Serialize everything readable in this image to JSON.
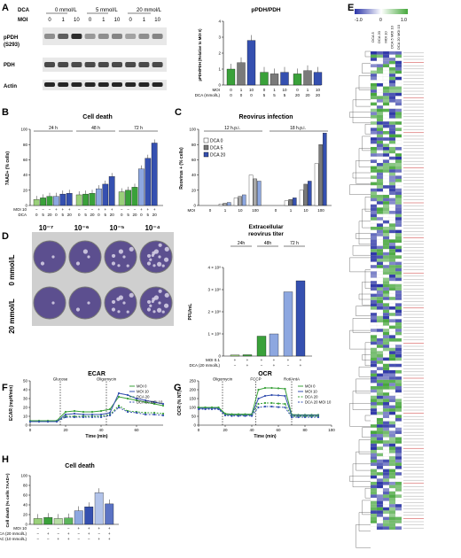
{
  "colors": {
    "green_light": "#9ad07a",
    "green": "#3aa13a",
    "blue_light": "#8da7e0",
    "blue": "#3550b0",
    "gray": "#7a7a7a",
    "white": "#ffffff",
    "heat_low": "#2b35a8",
    "heat_high": "#46a83c",
    "plate": "#5c4f8f"
  },
  "panel_labels": [
    "A",
    "B",
    "C",
    "D",
    "E",
    "F",
    "G",
    "H"
  ],
  "panelA": {
    "dca_label": "DCA",
    "moi_label": "MOI",
    "dca_groups": [
      "0 mmol/L",
      "5 mmol/L",
      "20 mmol/L"
    ],
    "moi_values": [
      "0",
      "1",
      "10",
      "0",
      "1",
      "10",
      "0",
      "1",
      "10"
    ],
    "blot_labels": [
      "pPDH",
      "(S293)",
      "PDH",
      "Actin"
    ]
  },
  "panelB": {
    "title": "Cell death",
    "groups": [
      "24 h",
      "48 h",
      "72 h"
    ],
    "moi_row_label": "MOI 10",
    "dca_row_label": "DCA",
    "moi_signs": [
      "−",
      "−",
      "−",
      "+",
      "+",
      "+"
    ],
    "dca_vals": [
      "0",
      "5",
      "20",
      "0",
      "5",
      "20"
    ]
  },
  "panelC": {
    "title": "Reovirus infection",
    "groups": [
      "12 h.p.i.",
      "18 h.p.i."
    ],
    "moi_row_label": "MOI",
    "moi_vals": [
      "0",
      "1",
      "10",
      "100"
    ],
    "legend": [
      "DCA 0",
      "DCA 5",
      "DCA 20"
    ]
  },
  "panelC2": {
    "title_lines": [
      "Extracellular",
      "reovirus titer"
    ],
    "groups": [
      "24h",
      "48h",
      "72 h"
    ],
    "moi_row_label": "MOI 0.1",
    "dca_row_label": "DCA (20 mmol/L)",
    "moi_signs": [
      "+",
      "+",
      "+",
      "+",
      "+",
      "+"
    ],
    "dca_signs": [
      "−",
      "+",
      "−",
      "+",
      "−",
      "+"
    ]
  },
  "panelD": {
    "concentrations": [
      "10⁻⁷",
      "10⁻⁶",
      "10⁻⁵",
      "10⁻⁴"
    ],
    "row_labels": [
      "0 mmol/L",
      "20 mmol/L"
    ]
  },
  "panelE": {
    "scale_min": "-1.0",
    "scale_zero": "0",
    "scale_max": "1.0",
    "columns": [
      "DCA 5",
      "DCA 20",
      "MOI 10",
      "DCA 5 MOI 10",
      "DCA 20 MOI 10"
    ]
  },
  "panelF": {
    "title": "ECAR",
    "annotations": [
      "Glucose",
      "Oligomycin"
    ],
    "legend": [
      "MOI 0",
      "MOI 10",
      "DCA 20",
      "DCA 20 MOI 10"
    ]
  },
  "panelG": {
    "title": "OCR",
    "annotations": [
      "Oligomycin",
      "FCCP",
      "Rot/AntA"
    ],
    "legend": [
      "MOI 0",
      "MOI 10",
      "DCA 20",
      "DCA 20 MOI 10"
    ]
  },
  "panelH": {
    "title": "Cell death",
    "row_labels": [
      "MOI 10",
      "DCA (20 mmol/L)",
      "NAC (10 mmol/L)"
    ],
    "moi_signs": [
      "−",
      "−",
      "−",
      "−",
      "+",
      "+",
      "+",
      "+"
    ],
    "dca_signs": [
      "−",
      "+",
      "−",
      "+",
      "−",
      "+",
      "−",
      "+"
    ],
    "nac_signs": [
      "−",
      "−",
      "+",
      "+",
      "−",
      "−",
      "+",
      "+"
    ]
  },
  "chart_data": [
    {
      "type": "bar",
      "panel": "A",
      "title": "pPDH/PDH",
      "ylabel": "pPDH/PDH (Relative to MOI 0)",
      "ylim": [
        0,
        4
      ],
      "yticks": [
        "0",
        "1",
        "2",
        "3",
        "4"
      ],
      "xlabel_rows": [
        "MOI",
        "DCA (mmol/L)"
      ],
      "moi": [
        "0",
        "1",
        "10",
        "0",
        "1",
        "10",
        "0",
        "1",
        "10"
      ],
      "dca": [
        "0",
        "0",
        "0",
        "5",
        "5",
        "5",
        "20",
        "20",
        "20"
      ],
      "values": [
        1.0,
        1.4,
        2.8,
        0.8,
        0.7,
        0.8,
        0.7,
        0.9,
        0.8
      ]
    },
    {
      "type": "bar",
      "panel": "B",
      "ylabel": "7AAD+ (% cells)",
      "ylim": [
        0,
        100
      ],
      "yticks": [
        "0",
        "20",
        "40",
        "60",
        "80",
        "100"
      ],
      "values": [
        [
          8,
          10,
          12,
          12,
          15,
          16
        ],
        [
          14,
          15,
          16,
          22,
          28,
          38
        ],
        [
          18,
          20,
          24,
          48,
          62,
          82
        ]
      ]
    },
    {
      "type": "bar",
      "panel": "C",
      "ylabel": "Reovirus + (% cells)",
      "ylim": [
        0,
        100
      ],
      "yticks": [
        "0",
        "20",
        "40",
        "60",
        "80",
        "100"
      ],
      "values": {
        "12 h.p.i.": [
          [
            0,
            0,
            0
          ],
          [
            2,
            3,
            4
          ],
          [
            10,
            12,
            14
          ],
          [
            40,
            35,
            32
          ]
        ],
        "18 h.p.i.": [
          [
            0,
            0,
            0
          ],
          [
            6,
            8,
            10
          ],
          [
            20,
            28,
            32
          ],
          [
            55,
            80,
            95
          ]
        ]
      }
    },
    {
      "type": "bar",
      "panel": "C-titer",
      "ylabel": "PFU/mL",
      "ylim": [
        0,
        4
      ],
      "yticks": [
        "0",
        "1 × 10⁸",
        "2 × 10⁸",
        "3 × 10⁸",
        "4 × 10⁸"
      ],
      "values": [
        0.05,
        0.06,
        0.9,
        1.0,
        2.9,
        3.4
      ]
    },
    {
      "type": "line",
      "panel": "F",
      "ylabel": "ECAR (mpH/min)",
      "xlabel": "Time (min)",
      "xlim": [
        0,
        75
      ],
      "ylim": [
        0,
        50
      ],
      "yticks": [
        "0",
        "10",
        "20",
        "30",
        "40",
        "50"
      ],
      "xticks": [
        "0",
        "20",
        "40",
        "60"
      ],
      "x": [
        0,
        5,
        10,
        15,
        20,
        25,
        30,
        35,
        40,
        45,
        50,
        55,
        60,
        65,
        70,
        75
      ],
      "series": [
        {
          "name": "MOI 0",
          "values": [
            5,
            5,
            5,
            5,
            15,
            16,
            15,
            15,
            16,
            18,
            32,
            30,
            28,
            26,
            24,
            22
          ]
        },
        {
          "name": "MOI 10",
          "values": [
            4,
            4,
            4,
            4,
            12,
            13,
            12,
            12,
            12,
            14,
            36,
            34,
            30,
            28,
            26,
            24
          ]
        },
        {
          "name": "DCA 20",
          "values": [
            4,
            4,
            4,
            4,
            10,
            10,
            10,
            10,
            10,
            12,
            22,
            16,
            15,
            14,
            14,
            13
          ]
        },
        {
          "name": "DCA 20 MOI 10",
          "values": [
            4,
            4,
            4,
            4,
            9,
            9,
            9,
            9,
            9,
            11,
            20,
            15,
            14,
            12,
            12,
            11
          ]
        }
      ]
    },
    {
      "type": "line",
      "panel": "G",
      "ylabel": "OCR (% NT)",
      "xlabel": "Time (min)",
      "xlim": [
        0,
        100
      ],
      "ylim": [
        0,
        250
      ],
      "yticks": [
        "0",
        "50",
        "100",
        "150",
        "200",
        "250"
      ],
      "xticks": [
        "0",
        "20",
        "40",
        "60",
        "80",
        "100"
      ],
      "x": [
        0,
        5,
        10,
        15,
        20,
        25,
        30,
        35,
        40,
        45,
        50,
        55,
        60,
        65,
        70,
        75,
        80,
        85,
        90
      ],
      "series": [
        {
          "name": "MOI 0",
          "values": [
            100,
            100,
            100,
            100,
            65,
            62,
            62,
            62,
            62,
            200,
            210,
            210,
            208,
            205,
            60,
            58,
            58,
            58,
            58
          ]
        },
        {
          "name": "MOI 10",
          "values": [
            95,
            95,
            95,
            95,
            60,
            58,
            58,
            58,
            58,
            150,
            165,
            170,
            168,
            165,
            55,
            55,
            55,
            55,
            55
          ]
        },
        {
          "name": "DCA 20",
          "values": [
            100,
            100,
            100,
            100,
            60,
            58,
            58,
            58,
            58,
            120,
            125,
            125,
            122,
            120,
            50,
            50,
            50,
            50,
            50
          ]
        },
        {
          "name": "DCA 20 MOI 10",
          "values": [
            90,
            90,
            90,
            90,
            55,
            52,
            52,
            52,
            52,
            100,
            105,
            105,
            102,
            100,
            45,
            45,
            45,
            45,
            45
          ]
        }
      ]
    },
    {
      "type": "bar",
      "panel": "H",
      "ylabel": "Cell death (% cells 7AAD+)",
      "ylim": [
        0,
        100
      ],
      "yticks": [
        "0",
        "20",
        "40",
        "60",
        "80",
        "100"
      ],
      "values": [
        12,
        14,
        12,
        13,
        28,
        36,
        65,
        42
      ]
    }
  ]
}
